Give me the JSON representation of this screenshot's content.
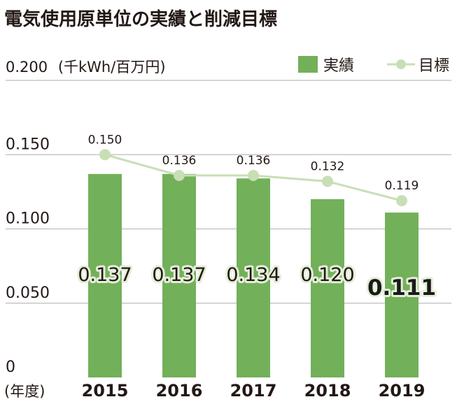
{
  "chart_data": {
    "type": "bar",
    "title": "電気使用原単位の実績と削減目標",
    "unit_label": "(千kWh/百万円)",
    "xlabel": "(年度)",
    "ylabel": "",
    "ylim": [
      0,
      0.2
    ],
    "yticks": [
      "0",
      "0.050",
      "0.100",
      "0.150",
      "0.200"
    ],
    "grid": true,
    "legend_position": "top-right",
    "categories": [
      "2015",
      "2016",
      "2017",
      "2018",
      "2019"
    ],
    "series": [
      {
        "name": "実績",
        "kind": "bar",
        "color": "#73b05a",
        "values": [
          0.137,
          0.137,
          0.134,
          0.12,
          0.111
        ],
        "labels": [
          "0.137",
          "0.137",
          "0.134",
          "0.120",
          "0.111"
        ]
      },
      {
        "name": "目標",
        "kind": "line",
        "color": "#c8dfb6",
        "values": [
          0.15,
          0.136,
          0.136,
          0.132,
          0.119
        ],
        "labels": [
          "0.150",
          "0.136",
          "0.136",
          "0.132",
          "0.119"
        ]
      }
    ]
  }
}
